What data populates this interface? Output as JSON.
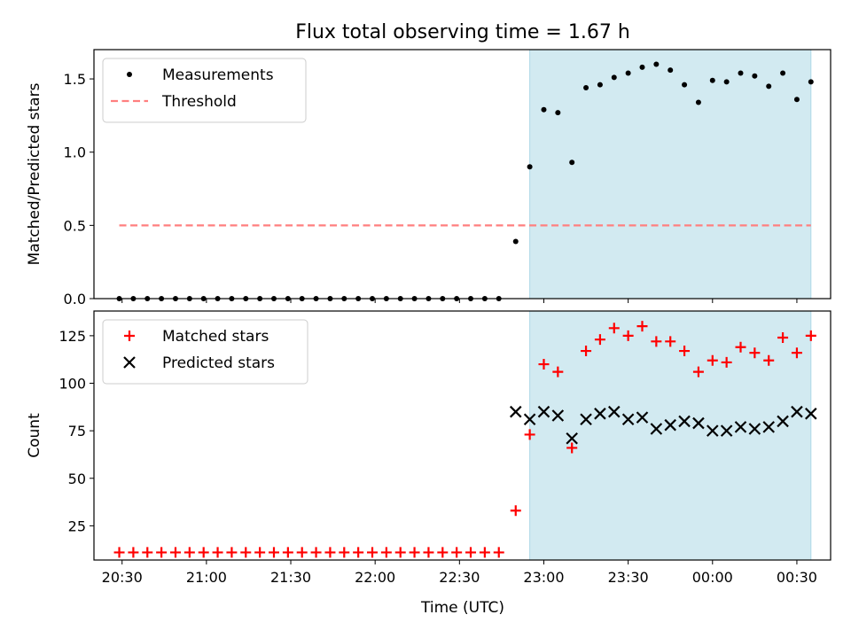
{
  "chart_data": {
    "title": "Flux total observing time = 1.67 h",
    "xlabel": "Time (UTC)",
    "x_tick_labels": [
      "20:30",
      "21:00",
      "21:30",
      "22:00",
      "22:30",
      "23:00",
      "23:30",
      "00:00",
      "00:30"
    ],
    "observing_window": {
      "start": "22:55",
      "end": "00:35",
      "color": "#add8e6"
    },
    "panels": [
      {
        "type": "scatter",
        "ylabel": "Matched/Predicted stars",
        "ylim": [
          0,
          1.7
        ],
        "y_ticks": [
          "0.0",
          "0.5",
          "1.0",
          "1.5"
        ],
        "legend_position": "upper left",
        "series": [
          {
            "name": "Measurements",
            "marker": "dot",
            "color": "#000000",
            "points": [
              [
                "20:29",
                0.0
              ],
              [
                "20:34",
                0.0
              ],
              [
                "20:39",
                0.0
              ],
              [
                "20:44",
                0.0
              ],
              [
                "20:49",
                0.0
              ],
              [
                "20:54",
                0.0
              ],
              [
                "20:59",
                0.0
              ],
              [
                "21:04",
                0.0
              ],
              [
                "21:09",
                0.0
              ],
              [
                "21:14",
                0.0
              ],
              [
                "21:19",
                0.0
              ],
              [
                "21:24",
                0.0
              ],
              [
                "21:29",
                0.0
              ],
              [
                "21:34",
                0.0
              ],
              [
                "21:39",
                0.0
              ],
              [
                "21:44",
                0.0
              ],
              [
                "21:49",
                0.0
              ],
              [
                "21:54",
                0.0
              ],
              [
                "21:59",
                0.0
              ],
              [
                "22:04",
                0.0
              ],
              [
                "22:09",
                0.0
              ],
              [
                "22:14",
                0.0
              ],
              [
                "22:19",
                0.0
              ],
              [
                "22:24",
                0.0
              ],
              [
                "22:29",
                0.0
              ],
              [
                "22:34",
                0.0
              ],
              [
                "22:39",
                0.0
              ],
              [
                "22:44",
                0.0
              ],
              [
                "22:50",
                0.39
              ],
              [
                "22:55",
                0.9
              ],
              [
                "23:00",
                1.29
              ],
              [
                "23:05",
                1.27
              ],
              [
                "23:10",
                0.93
              ],
              [
                "23:15",
                1.44
              ],
              [
                "23:20",
                1.46
              ],
              [
                "23:25",
                1.51
              ],
              [
                "23:30",
                1.54
              ],
              [
                "23:35",
                1.58
              ],
              [
                "23:40",
                1.6
              ],
              [
                "23:45",
                1.56
              ],
              [
                "23:50",
                1.46
              ],
              [
                "23:55",
                1.34
              ],
              [
                "00:00",
                1.49
              ],
              [
                "00:05",
                1.48
              ],
              [
                "00:10",
                1.54
              ],
              [
                "00:15",
                1.52
              ],
              [
                "00:20",
                1.45
              ],
              [
                "00:25",
                1.54
              ],
              [
                "00:30",
                1.36
              ],
              [
                "00:35",
                1.48
              ]
            ]
          },
          {
            "name": "Threshold",
            "marker": "dashed-line",
            "color": "#ff7f7f",
            "points": [
              [
                "20:29",
                0.5
              ],
              [
                "00:35",
                0.5
              ]
            ]
          }
        ]
      },
      {
        "type": "scatter",
        "ylabel": "Count",
        "ylim": [
          7,
          138
        ],
        "y_ticks": [
          "25",
          "50",
          "75",
          "100",
          "125"
        ],
        "legend_position": "upper left",
        "series": [
          {
            "name": "Matched stars",
            "marker": "plus",
            "color": "#ff0000",
            "points": [
              [
                "20:29",
                11
              ],
              [
                "20:34",
                11
              ],
              [
                "20:39",
                11
              ],
              [
                "20:44",
                11
              ],
              [
                "20:49",
                11
              ],
              [
                "20:54",
                11
              ],
              [
                "20:59",
                11
              ],
              [
                "21:04",
                11
              ],
              [
                "21:09",
                11
              ],
              [
                "21:14",
                11
              ],
              [
                "21:19",
                11
              ],
              [
                "21:24",
                11
              ],
              [
                "21:29",
                11
              ],
              [
                "21:34",
                11
              ],
              [
                "21:39",
                11
              ],
              [
                "21:44",
                11
              ],
              [
                "21:49",
                11
              ],
              [
                "21:54",
                11
              ],
              [
                "21:59",
                11
              ],
              [
                "22:04",
                11
              ],
              [
                "22:09",
                11
              ],
              [
                "22:14",
                11
              ],
              [
                "22:19",
                11
              ],
              [
                "22:24",
                11
              ],
              [
                "22:29",
                11
              ],
              [
                "22:34",
                11
              ],
              [
                "22:39",
                11
              ],
              [
                "22:44",
                11
              ],
              [
                "22:50",
                33
              ],
              [
                "22:55",
                73
              ],
              [
                "23:00",
                110
              ],
              [
                "23:05",
                106
              ],
              [
                "23:10",
                66
              ],
              [
                "23:15",
                117
              ],
              [
                "23:20",
                123
              ],
              [
                "23:25",
                129
              ],
              [
                "23:30",
                125
              ],
              [
                "23:35",
                130
              ],
              [
                "23:40",
                122
              ],
              [
                "23:45",
                122
              ],
              [
                "23:50",
                117
              ],
              [
                "23:55",
                106
              ],
              [
                "00:00",
                112
              ],
              [
                "00:05",
                111
              ],
              [
                "00:10",
                119
              ],
              [
                "00:15",
                116
              ],
              [
                "00:20",
                112
              ],
              [
                "00:25",
                124
              ],
              [
                "00:30",
                116
              ],
              [
                "00:35",
                125
              ]
            ]
          },
          {
            "name": "Predicted stars",
            "marker": "x",
            "color": "#000000",
            "points": [
              [
                "22:50",
                85
              ],
              [
                "22:55",
                81
              ],
              [
                "23:00",
                85
              ],
              [
                "23:05",
                83
              ],
              [
                "23:10",
                71
              ],
              [
                "23:15",
                81
              ],
              [
                "23:20",
                84
              ],
              [
                "23:25",
                85
              ],
              [
                "23:30",
                81
              ],
              [
                "23:35",
                82
              ],
              [
                "23:40",
                76
              ],
              [
                "23:45",
                78
              ],
              [
                "23:50",
                80
              ],
              [
                "23:55",
                79
              ],
              [
                "00:00",
                75
              ],
              [
                "00:05",
                75
              ],
              [
                "00:10",
                77
              ],
              [
                "00:15",
                76
              ],
              [
                "00:20",
                77
              ],
              [
                "00:25",
                80
              ],
              [
                "00:30",
                85
              ],
              [
                "00:35",
                84
              ]
            ]
          }
        ]
      }
    ]
  }
}
